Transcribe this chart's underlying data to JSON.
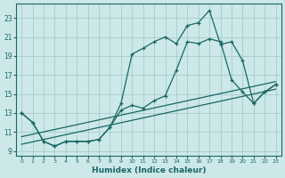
{
  "xlabel": "Humidex (Indice chaleur)",
  "bg_color": "#cce8e8",
  "line_color": "#1a6666",
  "grid_color": "#aacccc",
  "xlim": [
    -0.5,
    23.5
  ],
  "ylim": [
    8.5,
    24.5
  ],
  "yticks": [
    9,
    11,
    13,
    15,
    17,
    19,
    21,
    23
  ],
  "xticks": [
    0,
    1,
    2,
    3,
    4,
    5,
    6,
    7,
    8,
    9,
    10,
    11,
    12,
    13,
    14,
    15,
    16,
    17,
    18,
    19,
    20,
    21,
    22,
    23
  ],
  "line1_x": [
    0,
    1,
    2,
    3,
    4,
    5,
    6,
    7,
    8,
    9,
    10,
    11,
    12,
    13,
    14,
    15,
    16,
    17,
    18,
    19,
    20,
    21,
    22,
    23
  ],
  "line1_y": [
    13,
    12,
    10,
    9.5,
    10,
    10,
    10,
    10.2,
    11.5,
    14,
    19.2,
    19.8,
    20.5,
    21,
    20.3,
    22.2,
    22.5,
    23.8,
    20.2,
    20.5,
    18.5,
    14,
    15.2,
    16
  ],
  "line2_x": [
    0,
    1,
    2,
    3,
    4,
    5,
    6,
    7,
    8,
    9,
    10,
    11,
    12,
    13,
    14,
    15,
    16,
    17,
    18,
    19,
    20,
    21,
    22,
    23
  ],
  "line2_y": [
    13,
    12,
    10,
    9.5,
    10,
    10,
    10,
    10.2,
    11.5,
    13.3,
    13.8,
    13.5,
    14.3,
    14.8,
    17.5,
    20.5,
    20.3,
    20.8,
    20.5,
    16.5,
    15.2,
    14.0,
    15.2,
    16
  ],
  "line3_x": [
    0,
    23
  ],
  "line3_y": [
    9.7,
    15.5
  ],
  "line4_x": [
    0,
    23
  ],
  "line4_y": [
    10.5,
    16.3
  ]
}
